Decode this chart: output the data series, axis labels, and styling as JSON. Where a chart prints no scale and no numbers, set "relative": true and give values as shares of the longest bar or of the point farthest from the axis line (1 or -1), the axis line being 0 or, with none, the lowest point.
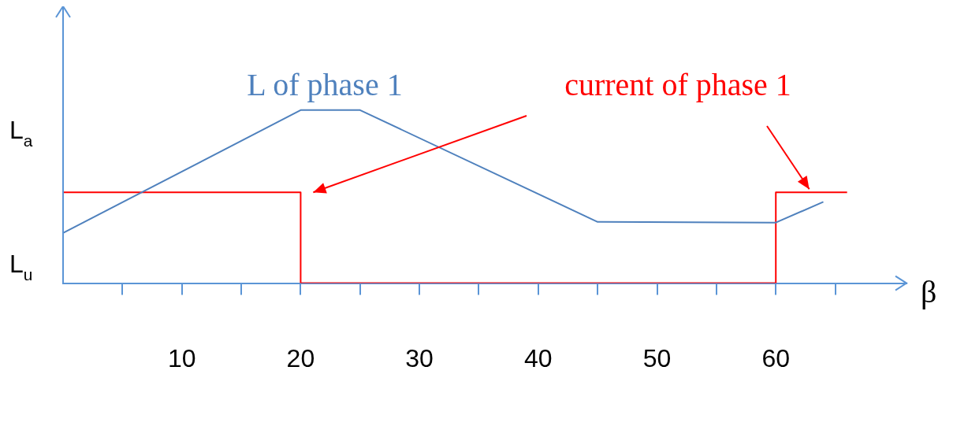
{
  "chart_data": {
    "type": "line",
    "xlabel": "β",
    "relative": true,
    "xlim": [
      0,
      71
    ],
    "xticks": [
      {
        "value": 5,
        "label": null
      },
      10,
      {
        "value": 15,
        "label": null
      },
      20,
      {
        "value": 25,
        "label": null
      },
      30,
      {
        "value": 35,
        "label": null
      },
      40,
      {
        "value": 45,
        "label": null
      },
      50,
      {
        "value": 55,
        "label": null
      },
      60,
      {
        "value": 65,
        "label": null
      }
    ],
    "series": [
      {
        "name": "L of phase 1",
        "color": "#4f81bd",
        "x": [
          0,
          20,
          25,
          45,
          60,
          64
        ],
        "values": [
          0.29,
          1,
          1,
          0.354,
          0.35,
          0.47
        ]
      },
      {
        "name": "current of phase 1",
        "color": "#ff0000",
        "x": [
          0,
          20,
          20,
          60,
          60,
          66
        ],
        "values": [
          0.525,
          0.525,
          0,
          0,
          0.525,
          0.525
        ]
      }
    ],
    "annotations": [
      "L$_{a}$",
      "L$_{u}$"
    ],
    "grid": false,
    "marker": "none",
    "line_style": "solid"
  }
}
